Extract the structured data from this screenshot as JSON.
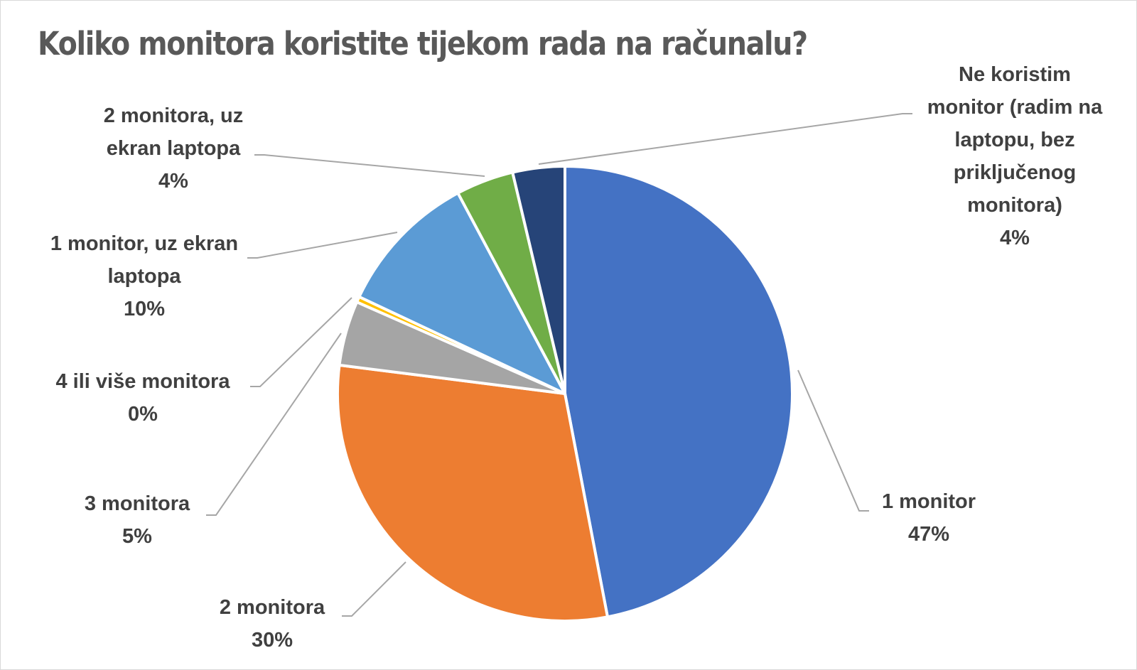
{
  "chart_data": {
    "type": "pie",
    "title": "Koliko monitora koristite tijekom rada na računalu?",
    "start_angle_deg": 0,
    "direction": "clockwise",
    "slices": [
      {
        "label": "1 monitor",
        "value": 47,
        "display": "47%",
        "color": "#4472C4"
      },
      {
        "label": "2 monitora",
        "value": 30,
        "display": "30%",
        "color": "#ED7D31"
      },
      {
        "label": "3 monitora",
        "value": 4.6,
        "display": "5%",
        "color": "#A5A5A5"
      },
      {
        "label": "4 ili više monitora",
        "value": 0.4,
        "display": "0%",
        "color": "#FFC000"
      },
      {
        "label": "1 monitor, uz ekran laptopa",
        "value": 10.2,
        "display": "10%",
        "color": "#5B9BD5"
      },
      {
        "label": "2 monitora, uz ekran laptopa",
        "value": 4.1,
        "display": "4%",
        "color": "#70AD47"
      },
      {
        "label": "Ne koristim monitor (radim na laptopu, bez priključenog monitora)",
        "value": 3.7,
        "display": "4%",
        "color": "#264478"
      }
    ]
  }
}
